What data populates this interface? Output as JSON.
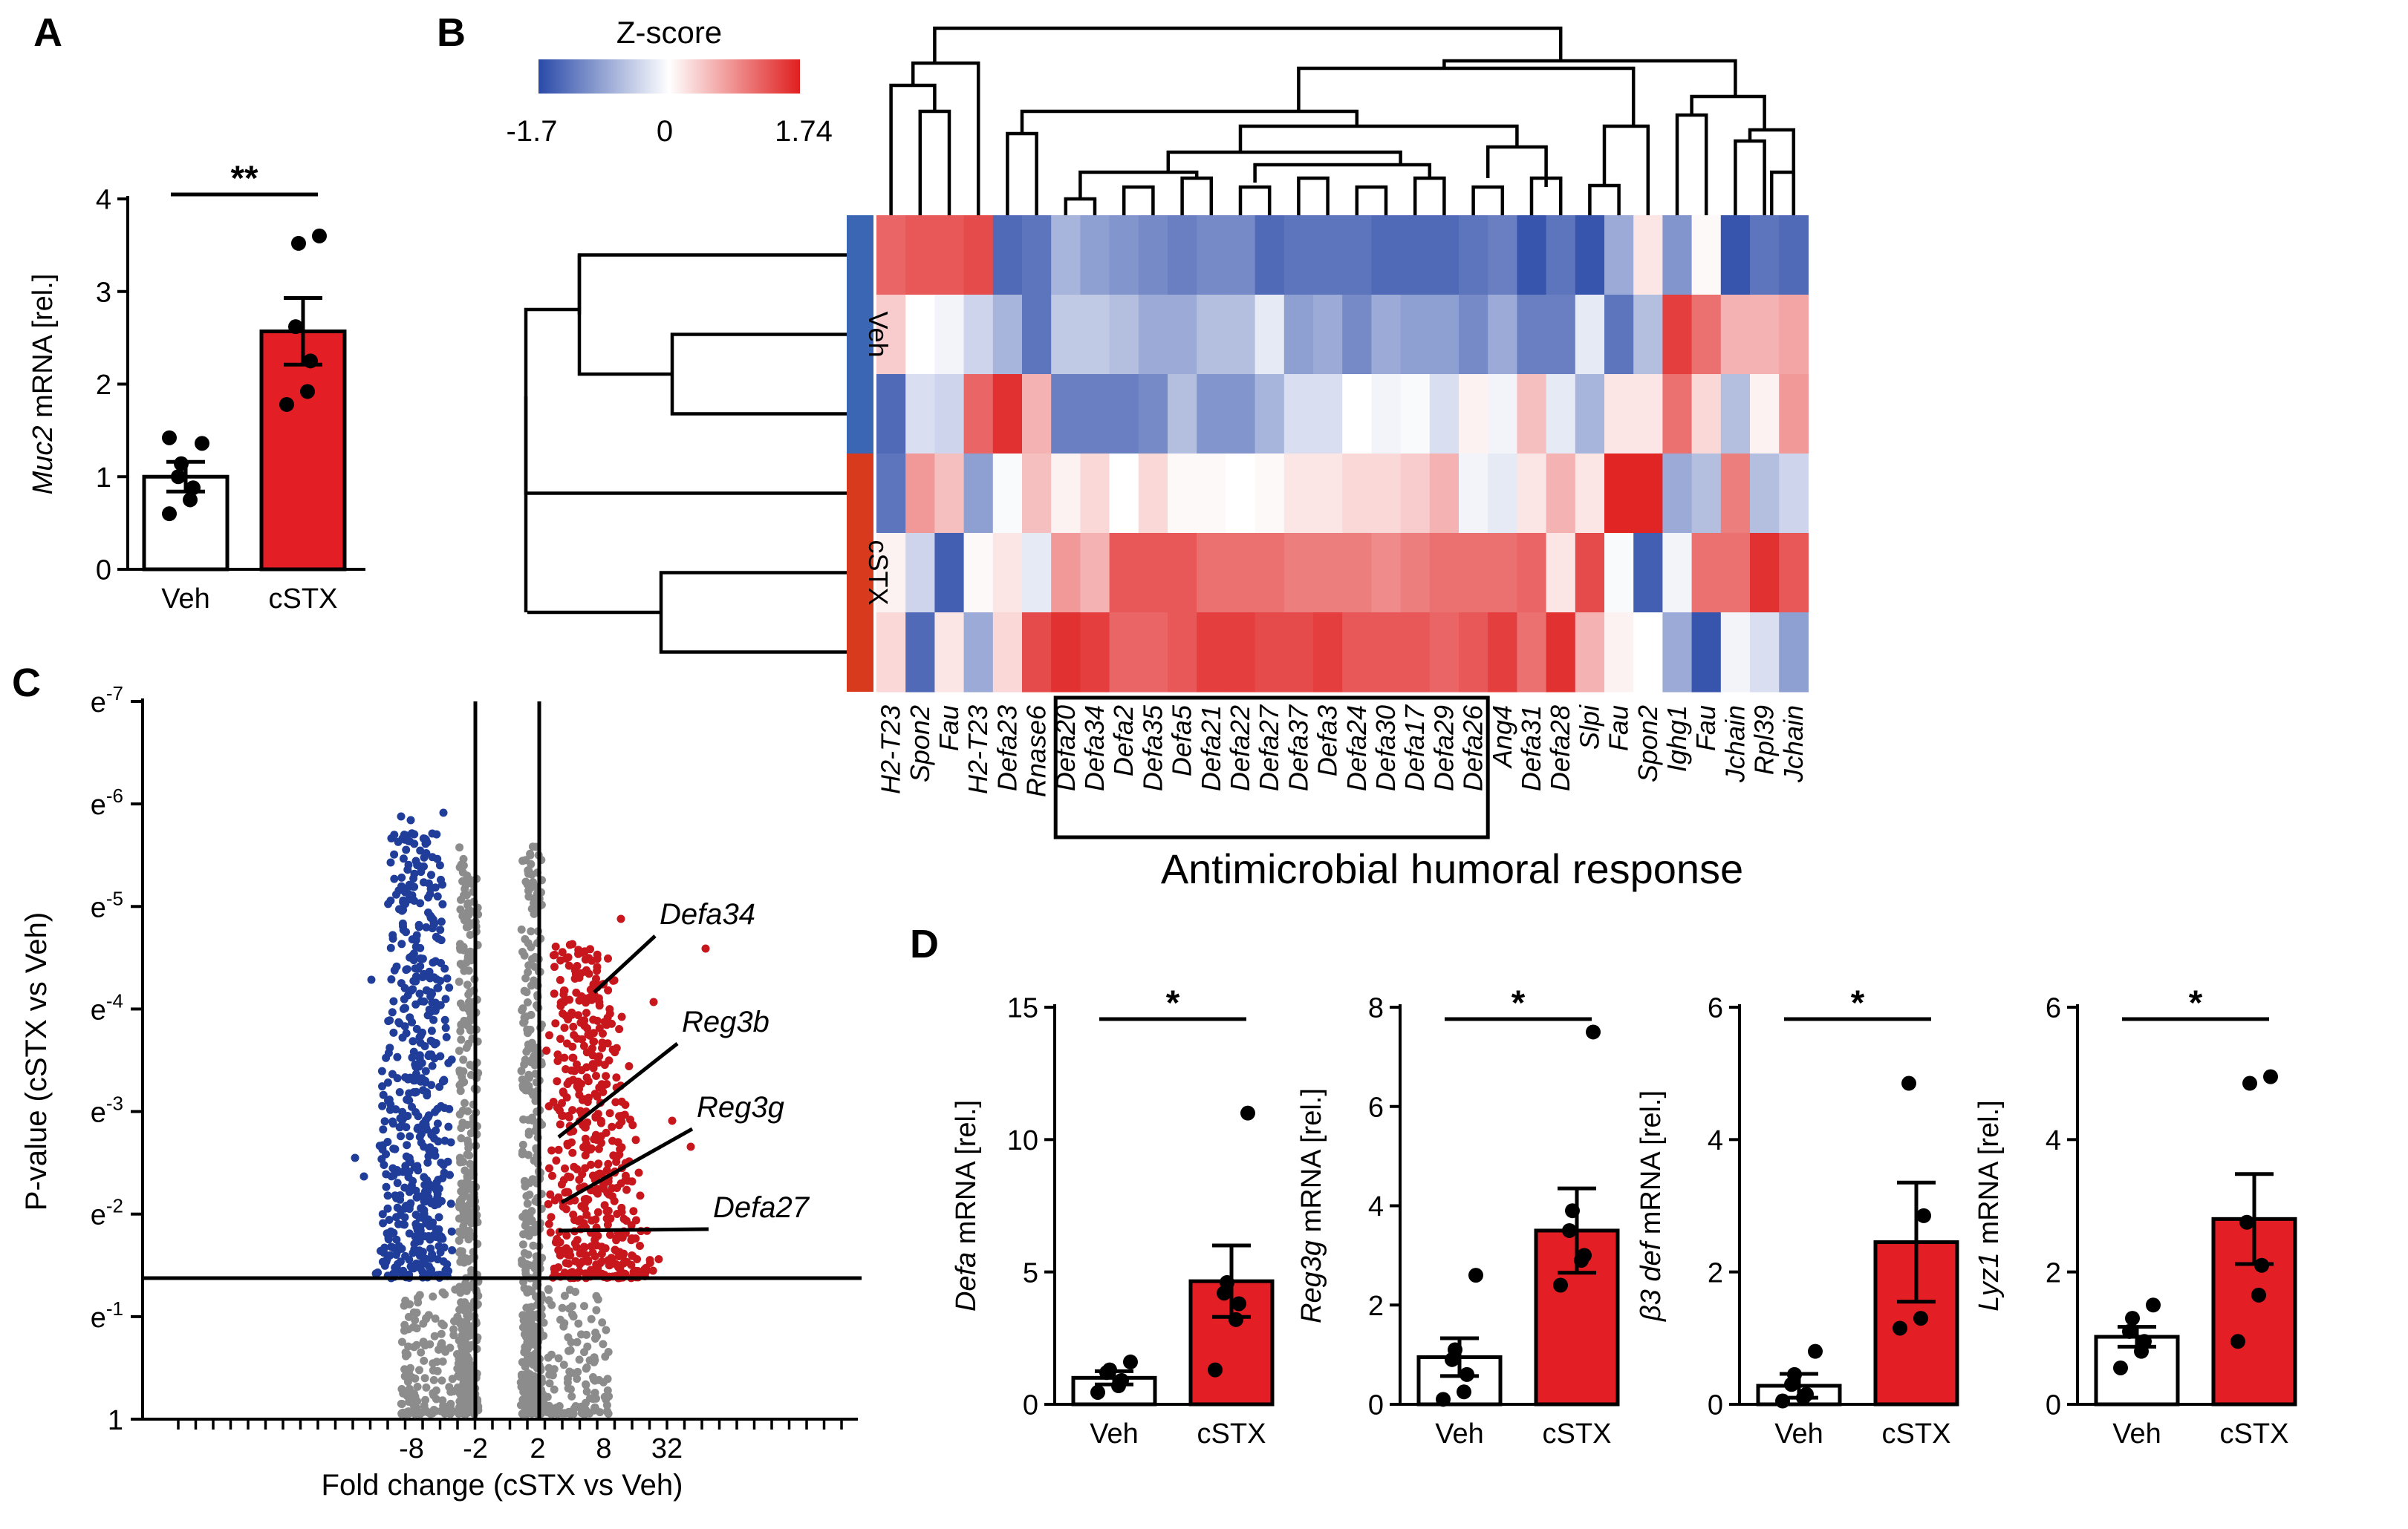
{
  "colors": {
    "veh_bar": "#ffffff",
    "cstx_bar": "#e31e24",
    "down": "#1f3d99",
    "up": "#c8161d",
    "ns": "#8c8c8c",
    "heat_low": "#2a4aa8",
    "heat_mid": "#ffffff",
    "heat_high": "#e01f1f",
    "veh_group": "#3a66b3",
    "cstx_group": "#d83a1e"
  },
  "panels": {
    "A": "A",
    "B": "B",
    "C": "C",
    "D": "D"
  },
  "chart_data": [
    {
      "id": "A",
      "type": "bar",
      "categories": [
        "Veh",
        "cSTX"
      ],
      "values": [
        1.0,
        2.57
      ],
      "sem": [
        0.16,
        0.36
      ],
      "points": [
        [
          0.6,
          0.75,
          0.88,
          1.0,
          1.14,
          1.36,
          1.42
        ],
        [
          1.78,
          1.92,
          2.25,
          2.62,
          3.52,
          3.6
        ]
      ],
      "ylabel_italic": "Muc2",
      "ylabel": "mRNA [rel.]",
      "ylim": [
        0,
        4
      ],
      "yticks": [
        "0",
        "1",
        "2",
        "3",
        "4"
      ],
      "significance": "**"
    },
    {
      "id": "B",
      "type": "heatmap",
      "colorbar_title": "Z-score",
      "colorbar_ticks": [
        "-1.7",
        "0",
        "1.74"
      ],
      "zrange": [
        -1.7,
        1.74
      ],
      "row_groups": [
        "Veh",
        "cSTX"
      ],
      "columns": [
        "H2-T23",
        "Spon2",
        "Fau",
        "H2-T23",
        "Defa23",
        "Rnase6",
        "Defa20",
        "Defa34",
        "Defa2",
        "Defa35",
        "Defa5",
        "Defa21",
        "Defa22",
        "Defa27",
        "Defa37",
        "Defa3",
        "Defa24",
        "Defa30",
        "Defa17",
        "Defa29",
        "Defa26",
        "Ang4",
        "Defa31",
        "Defa28",
        "Slpi",
        "Fau",
        "Spon2",
        "Ighg1",
        "Fau",
        "Jchain",
        "Rpl39",
        "Jchain"
      ],
      "boxed_columns": [
        "Defa20",
        "Defa26"
      ],
      "xlabel": "Antimicrobial humoral response",
      "matrix": [
        [
          1.2,
          1.3,
          1.3,
          1.4,
          -1.4,
          -1.3,
          -0.7,
          -0.9,
          -1.0,
          -1.1,
          -1.2,
          -1.1,
          -1.1,
          -1.4,
          -1.3,
          -1.3,
          -1.3,
          -1.4,
          -1.4,
          -1.4,
          -1.3,
          -1.2,
          -1.6,
          -1.3,
          -1.6,
          -0.8,
          0.2,
          -1.0,
          0.05,
          -1.6,
          -1.3,
          -1.4
        ],
        [
          0.4,
          0.0,
          -0.1,
          -0.4,
          -0.7,
          -1.3,
          -0.5,
          -0.5,
          -0.6,
          -0.8,
          -0.8,
          -0.6,
          -0.6,
          -0.2,
          -0.9,
          -0.8,
          -1.1,
          -0.8,
          -0.9,
          -0.9,
          -1.1,
          -0.8,
          -1.2,
          -1.2,
          -0.2,
          -1.3,
          -0.6,
          1.5,
          1.1,
          0.6,
          0.6,
          0.7
        ],
        [
          -1.4,
          -0.3,
          -0.4,
          1.2,
          1.6,
          0.6,
          -1.2,
          -1.2,
          -1.2,
          -1.1,
          -0.6,
          -1.0,
          -1.0,
          -0.7,
          -0.3,
          -0.3,
          0.0,
          -0.1,
          -0.05,
          -0.3,
          0.1,
          -0.1,
          0.5,
          -0.2,
          -0.7,
          0.2,
          0.2,
          1.1,
          0.3,
          -0.6,
          0.1,
          0.8
        ],
        [
          -1.3,
          0.8,
          0.5,
          -0.9,
          -0.05,
          0.5,
          0.1,
          0.3,
          0.0,
          0.3,
          0.05,
          0.05,
          0.0,
          0.05,
          0.2,
          0.2,
          0.3,
          0.3,
          0.4,
          0.6,
          -0.1,
          -0.2,
          0.2,
          0.6,
          0.2,
          1.7,
          1.7,
          -0.8,
          -0.6,
          1.0,
          -0.6,
          -0.4
        ],
        [
          0.1,
          -0.4,
          -1.5,
          0.05,
          0.2,
          -0.2,
          0.8,
          0.6,
          1.3,
          1.3,
          1.3,
          1.1,
          1.1,
          1.1,
          1.0,
          1.0,
          1.0,
          0.9,
          1.0,
          1.1,
          1.1,
          1.1,
          1.2,
          0.2,
          1.4,
          -0.05,
          -1.5,
          -0.1,
          1.1,
          1.1,
          1.6,
          1.3
        ],
        [
          0.3,
          -1.4,
          0.2,
          -0.8,
          0.3,
          1.4,
          1.6,
          1.5,
          1.2,
          1.2,
          1.3,
          1.5,
          1.5,
          1.4,
          1.4,
          1.5,
          1.3,
          1.3,
          1.3,
          1.2,
          1.3,
          1.5,
          1.1,
          1.6,
          0.6,
          0.1,
          0.0,
          -0.8,
          -1.6,
          -0.1,
          -0.3,
          -0.9
        ]
      ]
    },
    {
      "id": "C",
      "type": "scatter",
      "xlabel": "Fold change (cSTX vs Veh)",
      "ylabel": "P-value (cSTX vs Veh)",
      "xtick_labels": [
        "-8",
        "-2",
        "2",
        "8",
        "32"
      ],
      "yticks": [
        "e-7",
        "e-6",
        "e-5",
        "e-4",
        "e-3",
        "e-2",
        "e-1",
        "1"
      ],
      "ytick_exponents": [
        "-7",
        "-6",
        "-5",
        "-4",
        "-3",
        "-2",
        "-1",
        ""
      ],
      "fold_change_cutoffs": [
        -2,
        2
      ],
      "pvalue_cutoff": "e-1.3",
      "annotations": [
        "Defa34",
        "Reg3b",
        "Reg3g",
        "Defa27"
      ]
    },
    {
      "id": "D1",
      "type": "bar",
      "categories": [
        "Veh",
        "cSTX"
      ],
      "values": [
        1.0,
        4.65
      ],
      "sem": [
        0.25,
        1.35
      ],
      "points": [
        [
          0.45,
          0.7,
          0.9,
          1.2,
          1.3,
          1.6
        ],
        [
          1.3,
          3.2,
          3.8,
          4.2,
          4.6,
          11.0
        ]
      ],
      "ylabel_italic": "Defa",
      "ylabel": "mRNA [rel.]",
      "ylim": [
        0,
        15
      ],
      "yticks": [
        "0",
        "5",
        "10",
        "15"
      ],
      "significance": "*"
    },
    {
      "id": "D2",
      "type": "bar",
      "categories": [
        "Veh",
        "cSTX"
      ],
      "values": [
        0.95,
        3.5
      ],
      "sem": [
        0.38,
        0.85
      ],
      "points": [
        [
          0.1,
          0.25,
          0.6,
          0.9,
          1.1,
          2.6
        ],
        [
          2.4,
          2.9,
          3.0,
          3.5,
          3.9,
          7.5
        ]
      ],
      "ylabel_italic": "Reg3g",
      "ylabel": "mRNA [rel.]",
      "ylim": [
        0,
        8
      ],
      "yticks": [
        "0",
        "2",
        "4",
        "6",
        "8"
      ],
      "significance": "*"
    },
    {
      "id": "D3",
      "type": "bar",
      "categories": [
        "Veh",
        "cSTX"
      ],
      "values": [
        0.28,
        2.45
      ],
      "sem": [
        0.18,
        0.9
      ],
      "points": [
        [
          0.05,
          0.1,
          0.15,
          0.3,
          0.45,
          0.8
        ],
        [
          1.15,
          1.3,
          2.85,
          4.85
        ]
      ],
      "ylabel_italic": "β3 def",
      "ylabel": "mRNA [rel.]",
      "ylim": [
        0,
        6
      ],
      "yticks": [
        "0",
        "2",
        "4",
        "6"
      ],
      "significance": "*"
    },
    {
      "id": "D4",
      "type": "bar",
      "categories": [
        "Veh",
        "cSTX"
      ],
      "values": [
        1.02,
        2.8
      ],
      "sem": [
        0.15,
        0.68
      ],
      "points": [
        [
          0.55,
          0.8,
          0.95,
          1.1,
          1.3,
          1.5
        ],
        [
          0.95,
          1.65,
          2.1,
          2.75,
          4.85,
          4.95
        ]
      ],
      "ylabel_italic": "Lyz1",
      "ylabel": "mRNA [rel.]",
      "ylim": [
        0,
        6
      ],
      "yticks": [
        "0",
        "2",
        "4",
        "6"
      ],
      "significance": "*"
    }
  ]
}
